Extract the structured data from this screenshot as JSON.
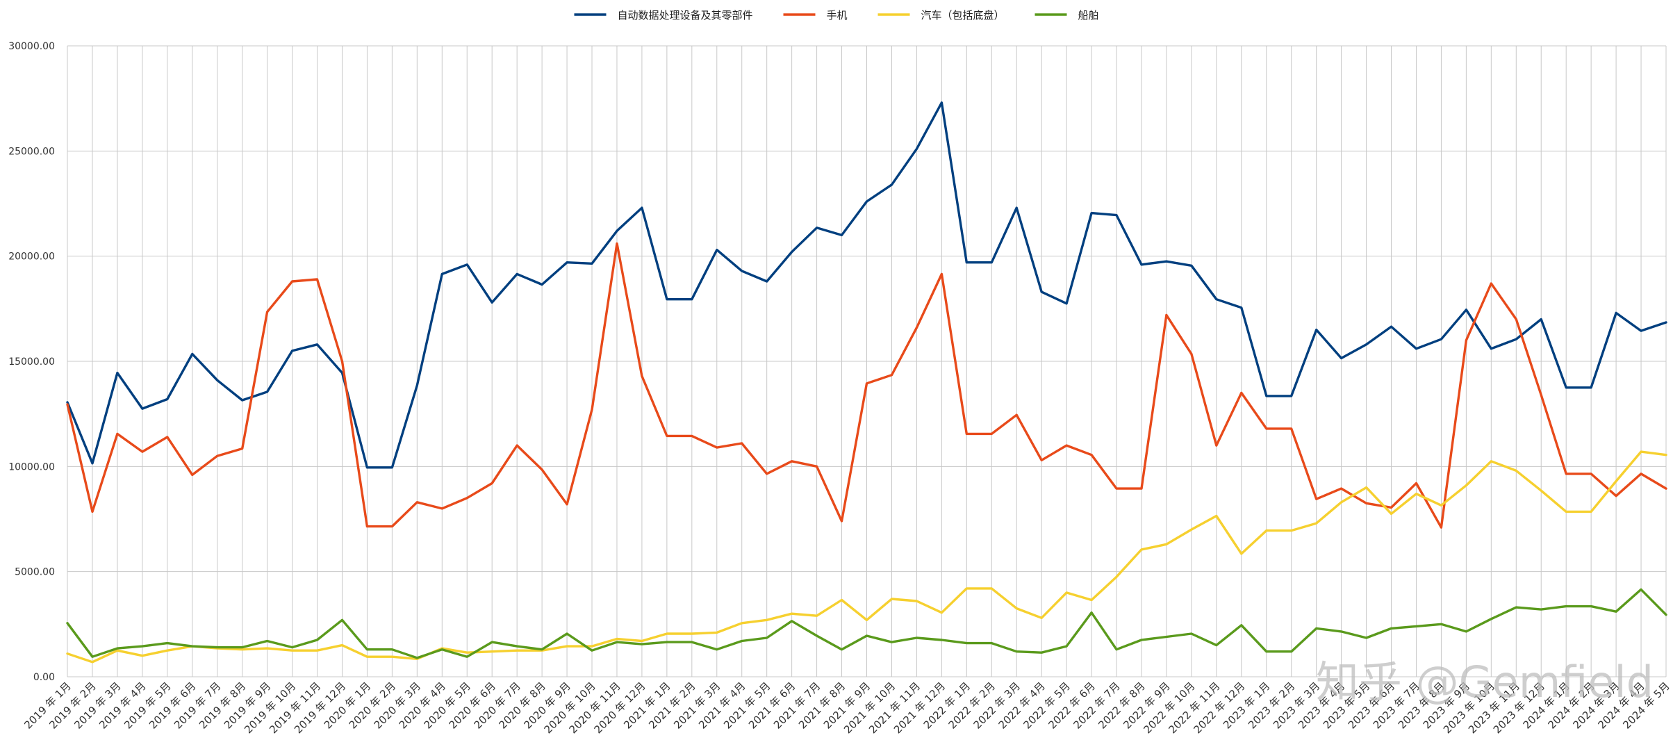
{
  "chart_data": {
    "type": "line",
    "title": "",
    "xlabel": "",
    "ylabel": "",
    "ylim": [
      0,
      30000
    ],
    "yticks": [
      "0.00",
      "5000.00",
      "10000.00",
      "15000.00",
      "20000.00",
      "25000.00",
      "30000.00"
    ],
    "grid": true,
    "legend_position": "top",
    "categories": [
      "2019年1月",
      "2019年2月",
      "2019年3月",
      "2019年4月",
      "2019年5月",
      "2019年6月",
      "2019年7月",
      "2019年8月",
      "2019年9月",
      "2019年10月",
      "2019年11月",
      "2019年12月",
      "2020年1月",
      "2020年2月",
      "2020年3月",
      "2020年4月",
      "2020年5月",
      "2020年6月",
      "2020年7月",
      "2020年8月",
      "2020年9月",
      "2020年10月",
      "2020年11月",
      "2020年12月",
      "2021年1月",
      "2021年2月",
      "2021年3月",
      "2021年4月",
      "2021年5月",
      "2021年6月",
      "2021年7月",
      "2021年8月",
      "2021年9月",
      "2021年10月",
      "2021年11月",
      "2021年12月",
      "2022年1月",
      "2022年2月",
      "2022年3月",
      "2022年4月",
      "2022年5月",
      "2022年6月",
      "2022年7月",
      "2022年8月",
      "2022年9月",
      "2022年10月",
      "2022年11月",
      "2022年12月",
      "2023年1月",
      "2023年2月",
      "2023年3月",
      "2023年4月",
      "2023年5月",
      "2023年6月",
      "2023年7月",
      "2023年8月",
      "2023年9月",
      "2023年10月",
      "2023年11月",
      "2023年12月",
      "2024年1月",
      "2024年2月",
      "2024年3月",
      "2024年4月",
      "2024年5月"
    ],
    "series": [
      {
        "name": "自动数据处理设备及其零部件",
        "color": "#003f7f",
        "values": [
          13050,
          10150,
          14450,
          12750,
          13200,
          15350,
          14100,
          13150,
          13550,
          15500,
          15800,
          14450,
          9950,
          9950,
          13850,
          19150,
          19600,
          17800,
          19150,
          18650,
          19700,
          19650,
          21200,
          22300,
          17950,
          17950,
          20300,
          19300,
          18800,
          20200,
          21350,
          21000,
          22600,
          23400,
          25100,
          27300,
          19700,
          19700,
          22300,
          18300,
          17750,
          22050,
          21950,
          19600,
          19750,
          19550,
          17950,
          17550,
          13350,
          13350,
          16500,
          15150,
          15800,
          16650,
          15600,
          16050,
          17450,
          15600,
          16050,
          17000,
          13750,
          13750,
          17300,
          16450,
          16850
        ]
      },
      {
        "name": "手机",
        "color": "#e84a1a",
        "values": [
          12950,
          7850,
          11550,
          10700,
          11400,
          9600,
          10500,
          10850,
          17350,
          18800,
          18900,
          15000,
          7150,
          7150,
          8300,
          8000,
          8500,
          9200,
          11000,
          9850,
          8200,
          12700,
          20600,
          14300,
          11450,
          11450,
          10900,
          11100,
          9650,
          10250,
          10000,
          7400,
          13950,
          14350,
          16600,
          19150,
          11550,
          11550,
          12450,
          10300,
          11000,
          10550,
          8950,
          8950,
          17200,
          15350,
          11000,
          13500,
          11800,
          11800,
          8450,
          8950,
          8250,
          8050,
          9200,
          7100,
          16000,
          18700,
          17000,
          13400,
          9650,
          9650,
          8600,
          9650,
          8950
        ]
      },
      {
        "name": "汽车（包括底盘）",
        "color": "#f6d02f",
        "values": [
          1100,
          700,
          1250,
          1000,
          1250,
          1450,
          1350,
          1300,
          1350,
          1250,
          1250,
          1500,
          950,
          950,
          850,
          1350,
          1150,
          1200,
          1250,
          1250,
          1450,
          1450,
          1800,
          1700,
          2050,
          2050,
          2100,
          2550,
          2700,
          3000,
          2900,
          3650,
          2700,
          3700,
          3600,
          3050,
          4200,
          4200,
          3250,
          2800,
          4000,
          3650,
          4750,
          6050,
          6300,
          7000,
          7650,
          5850,
          6950,
          6950,
          7300,
          8300,
          9000,
          7750,
          8700,
          8150,
          9100,
          10250,
          9800,
          8850,
          7850,
          7850,
          9300,
          10700,
          10550
        ]
      },
      {
        "name": "船舶",
        "color": "#5a9a1c",
        "values": [
          2550,
          950,
          1350,
          1450,
          1600,
          1450,
          1400,
          1400,
          1700,
          1400,
          1750,
          2700,
          1300,
          1300,
          900,
          1300,
          950,
          1650,
          1450,
          1300,
          2050,
          1250,
          1650,
          1550,
          1650,
          1650,
          1300,
          1700,
          1850,
          2650,
          1950,
          1300,
          1950,
          1650,
          1850,
          1750,
          1600,
          1600,
          1200,
          1150,
          1450,
          3050,
          1300,
          1750,
          1900,
          2050,
          1500,
          2450,
          1200,
          1200,
          2300,
          2150,
          1850,
          2300,
          2400,
          2500,
          2150,
          2750,
          3300,
          3200,
          3350,
          3350,
          3100,
          4150,
          2950
        ]
      }
    ]
  },
  "watermark": "知乎 @Gemfield"
}
